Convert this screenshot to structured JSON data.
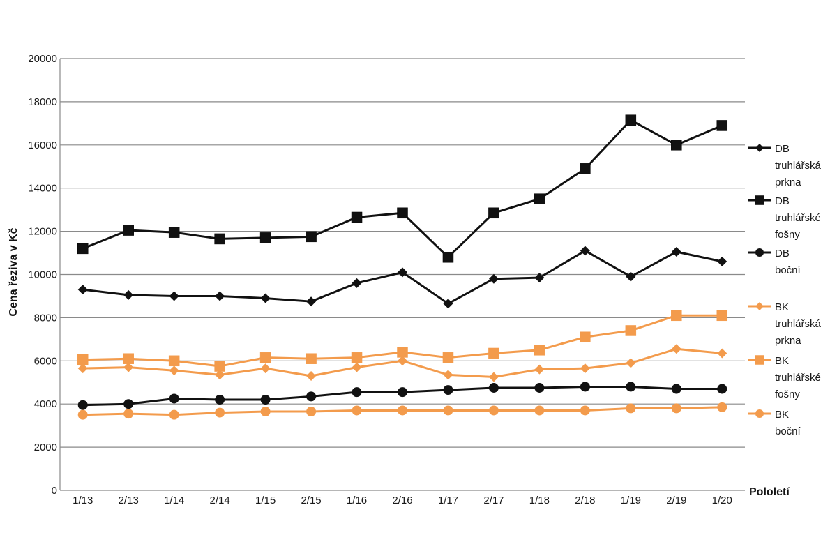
{
  "chart_data": {
    "type": "line",
    "xlabel": "Pololetí",
    "ylabel": "Cena řeziva v Kč",
    "ylim": [
      0,
      20000
    ],
    "yticks": [
      0,
      2000,
      4000,
      6000,
      8000,
      10000,
      12000,
      14000,
      16000,
      18000,
      20000
    ],
    "grid": "horizontal",
    "legend_position": "right",
    "categories": [
      "1/13",
      "2/13",
      "1/14",
      "2/14",
      "1/15",
      "2/15",
      "1/16",
      "2/16",
      "1/17",
      "2/17",
      "1/18",
      "2/18",
      "1/19",
      "2/19",
      "1/20"
    ],
    "series": [
      {
        "name": "DB truhlářská prkna",
        "label_lines": [
          "DB",
          "truhlářská",
          "prkna"
        ],
        "color": "#111111",
        "marker": "diamond",
        "values": [
          9300,
          9050,
          9000,
          9000,
          8900,
          8750,
          9600,
          10100,
          8650,
          9800,
          9850,
          11100,
          9900,
          11050,
          10600
        ]
      },
      {
        "name": "DB truhlářské fošny",
        "label_lines": [
          "DB",
          "truhlářské",
          "fošny"
        ],
        "color": "#111111",
        "marker": "square",
        "values": [
          11200,
          12050,
          11950,
          11650,
          11700,
          11750,
          12650,
          12850,
          10800,
          12850,
          13500,
          14900,
          17150,
          16000,
          16900
        ]
      },
      {
        "name": "DB boční",
        "label_lines": [
          "DB",
          "boční"
        ],
        "color": "#111111",
        "marker": "circle",
        "values": [
          3950,
          4000,
          4250,
          4200,
          4200,
          4350,
          4550,
          4550,
          4650,
          4750,
          4750,
          4800,
          4800,
          4700,
          4700
        ]
      },
      {
        "name": "BK truhlářská prkna",
        "label_lines": [
          "BK",
          "truhlářská",
          "prkna"
        ],
        "color": "#f39b4c",
        "marker": "diamond",
        "values": [
          5650,
          5700,
          5550,
          5350,
          5650,
          5300,
          5700,
          6000,
          5350,
          5250,
          5600,
          5650,
          5900,
          6550,
          6350
        ]
      },
      {
        "name": "BK truhlářské fošny",
        "label_lines": [
          "BK",
          "truhlářské",
          "fošny"
        ],
        "color": "#f39b4c",
        "marker": "square",
        "values": [
          6050,
          6100,
          6000,
          5750,
          6150,
          6100,
          6150,
          6400,
          6150,
          6350,
          6500,
          7100,
          7400,
          8100,
          8100
        ]
      },
      {
        "name": "BK boční",
        "label_lines": [
          "BK",
          "boční"
        ],
        "color": "#f39b4c",
        "marker": "circle",
        "values": [
          3500,
          3550,
          3500,
          3600,
          3650,
          3650,
          3700,
          3700,
          3700,
          3700,
          3700,
          3700,
          3800,
          3800,
          3850
        ]
      }
    ]
  }
}
